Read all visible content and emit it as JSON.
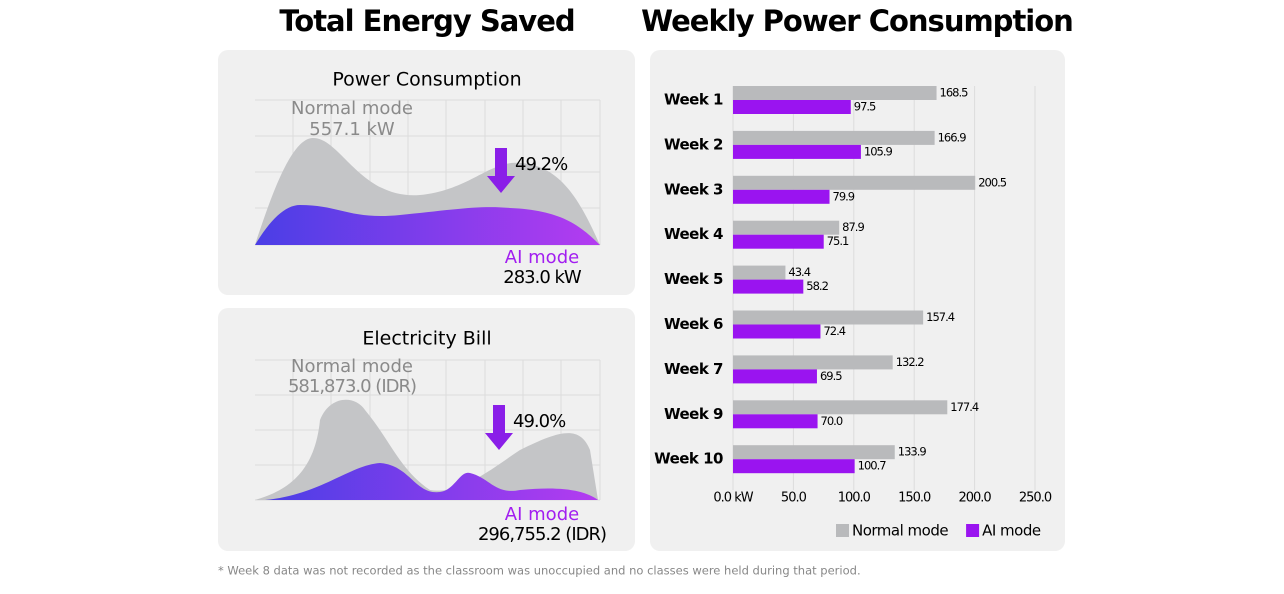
{
  "header": {
    "left_title": "Total Energy Saved",
    "right_title": "Weekly Power Consumption"
  },
  "energy_panels": [
    {
      "title": "Power Consumption",
      "normal_label": "Normal mode",
      "normal_value": "557.1 kW",
      "saving": "49.2%",
      "ai_label": "AI mode",
      "ai_value": "283.0 kW"
    },
    {
      "title": "Electricity Bill",
      "normal_label": "Normal mode",
      "normal_value": "581,873.0 (IDR)",
      "saving": "49.0%",
      "ai_label": "AI mode",
      "ai_value": "296,755.2 (IDR)"
    }
  ],
  "chart_data": {
    "type": "hbar",
    "title": "Weekly Power Consumption",
    "categories": [
      "Week 1",
      "Week 2",
      "Week 3",
      "Week 4",
      "Week 5",
      "Week 6",
      "Week 7",
      "Week 9",
      "Week 10"
    ],
    "series": [
      {
        "name": "Normal mode",
        "color": "#b9babc",
        "values": [
          168.5,
          166.9,
          200.5,
          87.9,
          43.4,
          157.4,
          132.2,
          177.4,
          133.9
        ]
      },
      {
        "name": "AI mode",
        "color": "#9a14f0",
        "values": [
          97.5,
          105.9,
          79.9,
          75.1,
          58.2,
          72.4,
          69.5,
          70.0,
          100.7
        ],
        "value_labels": [
          "97.5",
          "105.9",
          "79.9",
          "75.1",
          "58.2",
          "72.4",
          "69.5",
          "70.0",
          "100.7"
        ]
      }
    ],
    "xlim": [
      0,
      250
    ],
    "xticks": [
      {
        "value": 0,
        "label": "0.0 kW"
      },
      {
        "value": 50,
        "label": "50.0"
      },
      {
        "value": 100,
        "label": "100.0"
      },
      {
        "value": 150,
        "label": "150.0"
      },
      {
        "value": 200,
        "label": "200.0"
      },
      {
        "value": 250,
        "label": "250.0"
      }
    ],
    "grid": true,
    "legend": "bottom"
  },
  "footnote": "* Week 8 data was not recorded as the classroom was unoccupied and no classes were held during that period."
}
